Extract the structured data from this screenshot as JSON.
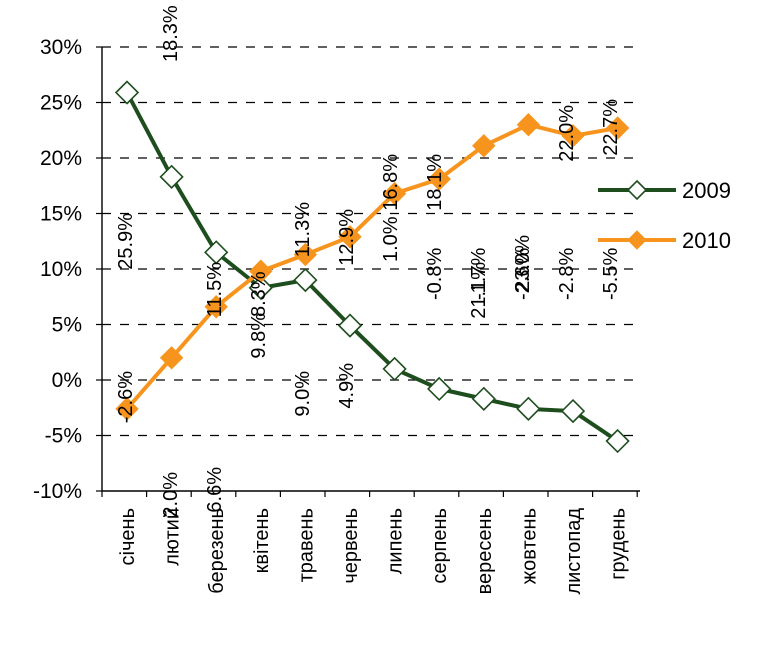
{
  "chart_data": {
    "type": "line",
    "categories": [
      "січень",
      "лютий",
      "березень",
      "квітень",
      "травень",
      "червень",
      "липень",
      "серпень",
      "вересень",
      "жовтень",
      "листопад",
      "грудень"
    ],
    "series": [
      {
        "name": "2009",
        "color": "#1e4d1e",
        "marker": "hollow-diamond",
        "values": [
          25.9,
          18.3,
          11.5,
          8.3,
          9.0,
          4.9,
          1.0,
          -0.8,
          -1.7,
          -2.6,
          -2.8,
          -5.5
        ],
        "labels": [
          "25.9%",
          "18.3%",
          "11.5%",
          "8.3%",
          "9.0%",
          "4.9%",
          "1.0%",
          "-0.8%",
          "-1.7%",
          "-2.6%",
          "-2.8%",
          "-5.5%"
        ]
      },
      {
        "name": "2010",
        "color": "#f7941d",
        "marker": "filled-diamond",
        "values": [
          -2.6,
          2.0,
          6.6,
          9.8,
          11.3,
          12.9,
          16.8,
          18.1,
          21.1,
          23.0,
          22.0,
          22.7
        ],
        "labels": [
          "-2.6%",
          "2.0%",
          "6.6%",
          "9.8%",
          "11.3%",
          "12.9%",
          "16.8%",
          "18.1%",
          "21.1%",
          "23.0%",
          "22.0%",
          "22.7%"
        ]
      }
    ],
    "ylim": [
      -10,
      30
    ],
    "yticks": [
      -10,
      -5,
      0,
      5,
      10,
      15,
      20,
      25,
      30
    ],
    "ytick_labels": [
      "-10%",
      "-5%",
      "0%",
      "5%",
      "10%",
      "15%",
      "20%",
      "25%",
      "30%"
    ],
    "grid": "dashed-horizontal",
    "legend_position": "right",
    "title": "",
    "xlabel": "",
    "ylabel": ""
  }
}
